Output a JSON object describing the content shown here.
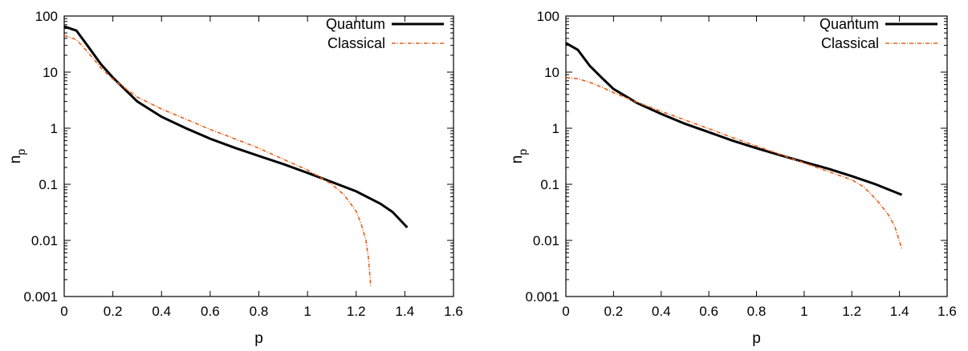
{
  "colors": {
    "quantum": "#000000",
    "classical": "#e8601c"
  },
  "chart_data": [
    {
      "type": "line",
      "xlabel": "p",
      "ylabel_main": "n",
      "ylabel_sub": "p",
      "xlim": [
        0,
        1.6
      ],
      "ylim": [
        0.001,
        100
      ],
      "yscale": "log",
      "x_ticks": [
        "0",
        "0.2",
        "0.4",
        "0.6",
        "0.8",
        "1",
        "1.2",
        "1.4",
        "1.6"
      ],
      "y_ticks": [
        "0.001",
        "0.01",
        "0.1",
        "1",
        "10",
        "100"
      ],
      "legend_position": "top-right",
      "series": [
        {
          "name": "Quantum",
          "color": "#000000",
          "style": "solid",
          "x": [
            0,
            0.05,
            0.1,
            0.15,
            0.2,
            0.3,
            0.4,
            0.5,
            0.6,
            0.7,
            0.8,
            0.9,
            1.0,
            1.1,
            1.2,
            1.3,
            1.35,
            1.41
          ],
          "y": [
            65,
            55,
            28,
            14,
            8,
            3,
            1.6,
            1.0,
            0.65,
            0.45,
            0.32,
            0.23,
            0.16,
            0.11,
            0.075,
            0.045,
            0.032,
            0.017
          ]
        },
        {
          "name": "Classical",
          "color": "#e8601c",
          "style": "dash-dot",
          "x": [
            0,
            0.05,
            0.1,
            0.15,
            0.2,
            0.3,
            0.4,
            0.5,
            0.6,
            0.7,
            0.8,
            0.9,
            1.0,
            1.1,
            1.15,
            1.2,
            1.22,
            1.24,
            1.25,
            1.26
          ],
          "y": [
            45,
            38,
            22,
            12,
            7.5,
            3.6,
            2.2,
            1.45,
            0.95,
            0.65,
            0.44,
            0.28,
            0.18,
            0.1,
            0.065,
            0.033,
            0.02,
            0.01,
            0.005,
            0.0015
          ]
        }
      ]
    },
    {
      "type": "line",
      "xlabel": "p",
      "ylabel_main": "n",
      "ylabel_sub": "p",
      "xlim": [
        0,
        1.6
      ],
      "ylim": [
        0.001,
        100
      ],
      "yscale": "log",
      "x_ticks": [
        "0",
        "0.2",
        "0.4",
        "0.6",
        "0.8",
        "1",
        "1.2",
        "1.4",
        "1.6"
      ],
      "y_ticks": [
        "0.001",
        "0.01",
        "0.1",
        "1",
        "10",
        "100"
      ],
      "legend_position": "top-right",
      "series": [
        {
          "name": "Quantum",
          "color": "#000000",
          "style": "solid",
          "x": [
            0,
            0.05,
            0.1,
            0.15,
            0.2,
            0.3,
            0.4,
            0.5,
            0.6,
            0.7,
            0.8,
            0.9,
            1.0,
            1.1,
            1.2,
            1.3,
            1.41
          ],
          "y": [
            33,
            25,
            13,
            8,
            5,
            2.8,
            1.8,
            1.2,
            0.85,
            0.6,
            0.44,
            0.33,
            0.25,
            0.19,
            0.14,
            0.1,
            0.065
          ]
        },
        {
          "name": "Classical",
          "color": "#e8601c",
          "style": "dash-dot",
          "x": [
            0,
            0.05,
            0.1,
            0.15,
            0.2,
            0.3,
            0.4,
            0.5,
            0.6,
            0.7,
            0.8,
            0.9,
            1.0,
            1.1,
            1.2,
            1.25,
            1.3,
            1.35,
            1.38,
            1.41
          ],
          "y": [
            8,
            7.6,
            6.6,
            5.4,
            4.3,
            2.9,
            2.0,
            1.4,
            0.98,
            0.68,
            0.48,
            0.34,
            0.24,
            0.17,
            0.12,
            0.09,
            0.055,
            0.03,
            0.018,
            0.007
          ]
        }
      ]
    }
  ]
}
